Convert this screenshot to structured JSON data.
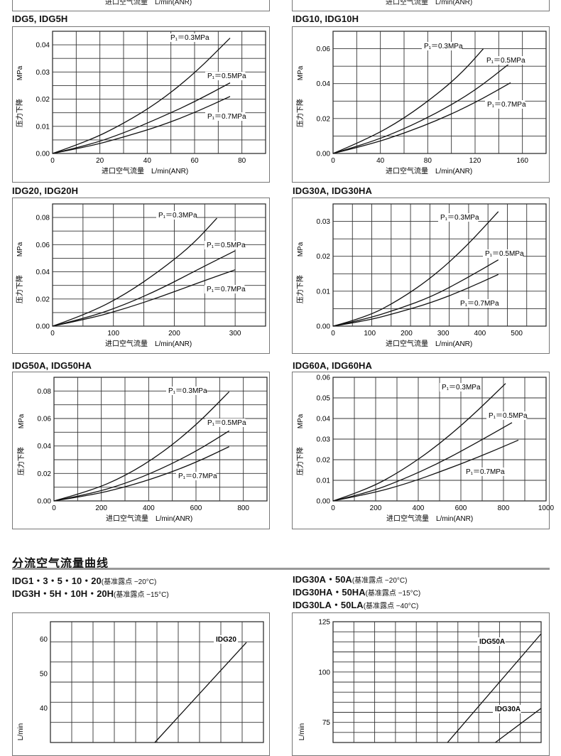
{
  "top_fragments": [
    "进口空气流量　L/min(ANR)",
    "进口空气流量　L/min(ANR)"
  ],
  "section_heading": "分流空气流量曲线",
  "subheads": {
    "left": [
      {
        "main": "IDG1・3・5・10・20",
        "note": "(基准露点 −20°C)"
      },
      {
        "main": "IDG3H・5H・10H・20H",
        "note": "(基准露点 −15°C)"
      }
    ],
    "right": [
      {
        "main": "IDG30A・50A",
        "note": "(基准露点 −20°C)"
      },
      {
        "main": "IDG30HA・50HA",
        "note": "(基准露点 −15°C)"
      },
      {
        "main": "IDG30LA・50LA",
        "note": "(基准露点 −40°C)"
      }
    ]
  },
  "chart_data": [
    {
      "type": "line",
      "title": "IDG5, IDG5H",
      "xlabel": "进口空气流量　L/min(ANR)",
      "ylabel_cn": "压力下降",
      "ylabel_unit": "MPa",
      "xlim": [
        0,
        90
      ],
      "ylim": [
        0,
        0.045
      ],
      "xticks": [
        0,
        20,
        40,
        60,
        80
      ],
      "yticks": [
        0.0,
        0.01,
        0.02,
        0.03,
        0.04
      ],
      "yticklabels": [
        "0.00",
        "0.01",
        "0.02",
        "0.03",
        "0.04"
      ],
      "series": [
        {
          "name": "P₁＝0.3MPa",
          "x": [
            0,
            15,
            30,
            45,
            60,
            75
          ],
          "y": [
            0,
            0.0045,
            0.011,
            0.019,
            0.0295,
            0.0425
          ]
        },
        {
          "name": "P₁＝0.5MPa",
          "x": [
            0,
            15,
            30,
            45,
            60,
            75
          ],
          "y": [
            0,
            0.003,
            0.0075,
            0.013,
            0.019,
            0.026
          ]
        },
        {
          "name": "P₁＝0.7MPa",
          "x": [
            0,
            15,
            30,
            45,
            60,
            75
          ],
          "y": [
            0,
            0.0025,
            0.006,
            0.01,
            0.015,
            0.021
          ]
        }
      ]
    },
    {
      "type": "line",
      "title": "IDG10, IDG10H",
      "xlabel": "进口空气流量　L/min(ANR)",
      "ylabel_cn": "压力下降",
      "ylabel_unit": "MPa",
      "xlim": [
        0,
        180
      ],
      "ylim": [
        0,
        0.07
      ],
      "xticks": [
        0,
        40,
        80,
        120,
        160
      ],
      "yticks": [
        0.0,
        0.02,
        0.04,
        0.06
      ],
      "yticklabels": [
        "0.00",
        "0.02",
        "0.04",
        "0.06"
      ],
      "series": [
        {
          "name": "P₁＝0.3MPa",
          "x": [
            0,
            30,
            60,
            90,
            110,
            127
          ],
          "y": [
            0,
            0.0085,
            0.02,
            0.035,
            0.047,
            0.06
          ]
        },
        {
          "name": "P₁＝0.5MPa",
          "x": [
            0,
            30,
            60,
            90,
            120,
            150
          ],
          "y": [
            0,
            0.006,
            0.014,
            0.024,
            0.036,
            0.052
          ]
        },
        {
          "name": "P₁＝0.7MPa",
          "x": [
            0,
            30,
            60,
            90,
            120,
            150
          ],
          "y": [
            0,
            0.005,
            0.0115,
            0.0195,
            0.029,
            0.0405
          ]
        }
      ]
    },
    {
      "type": "line",
      "title": "IDG20, IDG20H",
      "xlabel": "进口空气流量　L/min(ANR)",
      "ylabel_cn": "压力下降",
      "ylabel_unit": "MPa",
      "xlim": [
        0,
        350
      ],
      "ylim": [
        0,
        0.09
      ],
      "xticks": [
        0,
        100,
        200,
        300
      ],
      "yticks": [
        0.0,
        0.02,
        0.04,
        0.06,
        0.08
      ],
      "yticklabels": [
        "0.00",
        "0.02",
        "0.04",
        "0.06",
        "0.08"
      ],
      "series": [
        {
          "name": "P₁＝0.3MPa",
          "x": [
            0,
            60,
            120,
            180,
            230,
            270
          ],
          "y": [
            0,
            0.0095,
            0.0235,
            0.042,
            0.06,
            0.0795
          ]
        },
        {
          "name": "P₁＝0.5MPa",
          "x": [
            0,
            60,
            120,
            180,
            240,
            300
          ],
          "y": [
            0,
            0.0065,
            0.016,
            0.028,
            0.042,
            0.0555
          ]
        },
        {
          "name": "P₁＝0.7MPa",
          "x": [
            0,
            60,
            120,
            180,
            240,
            300
          ],
          "y": [
            0,
            0.0055,
            0.013,
            0.022,
            0.032,
            0.0415
          ]
        }
      ]
    },
    {
      "type": "line",
      "title": "IDG30A, IDG30HA",
      "xlabel": "进口空气流量　L/min(ANR)",
      "ylabel_cn": "压力下降",
      "ylabel_unit": "MPa",
      "xlim": [
        0,
        580
      ],
      "ylim": [
        0,
        0.035
      ],
      "xticks": [
        0,
        100,
        200,
        300,
        400,
        500
      ],
      "yticks": [
        0.0,
        0.01,
        0.02,
        0.03
      ],
      "yticklabels": [
        "0.00",
        "0.01",
        "0.02",
        "0.03"
      ],
      "series": [
        {
          "name": "P₁＝0.3MPa",
          "x": [
            0,
            90,
            180,
            270,
            360,
            450
          ],
          "y": [
            0,
            0.0025,
            0.0075,
            0.014,
            0.0225,
            0.0328
          ]
        },
        {
          "name": "P₁＝0.5MPa",
          "x": [
            0,
            90,
            180,
            270,
            360,
            450
          ],
          "y": [
            0,
            0.002,
            0.005,
            0.0085,
            0.0135,
            0.019
          ]
        },
        {
          "name": "P₁＝0.7MPa",
          "x": [
            0,
            90,
            180,
            270,
            360,
            450
          ],
          "y": [
            0,
            0.0015,
            0.004,
            0.0068,
            0.0105,
            0.0148
          ]
        }
      ]
    },
    {
      "type": "line",
      "title": "IDG50A, IDG50HA",
      "xlabel": "进口空气流量　L/min(ANR)",
      "ylabel_cn": "压力下降",
      "ylabel_unit": "MPa",
      "xlim": [
        0,
        900
      ],
      "ylim": [
        0,
        0.09
      ],
      "xticks": [
        0,
        200,
        400,
        600,
        800
      ],
      "yticks": [
        0.0,
        0.02,
        0.04,
        0.06,
        0.08
      ],
      "yticklabels": [
        "0.00",
        "0.02",
        "0.04",
        "0.06",
        "0.08"
      ],
      "series": [
        {
          "name": "P₁＝0.3MPa",
          "x": [
            0,
            150,
            300,
            450,
            600,
            740
          ],
          "y": [
            0,
            0.007,
            0.018,
            0.034,
            0.055,
            0.0795
          ]
        },
        {
          "name": "P₁＝0.5MPa",
          "x": [
            0,
            150,
            300,
            450,
            600,
            740
          ],
          "y": [
            0,
            0.005,
            0.0125,
            0.023,
            0.036,
            0.051
          ]
        },
        {
          "name": "P₁＝0.7MPa",
          "x": [
            0,
            150,
            300,
            450,
            600,
            740
          ],
          "y": [
            0,
            0.004,
            0.01,
            0.018,
            0.028,
            0.0395
          ]
        }
      ]
    },
    {
      "type": "line",
      "title": "IDG60A, IDG60HA",
      "xlabel": "进口空气流量　L/min(ANR)",
      "ylabel_cn": "压力下降",
      "ylabel_unit": "MPa",
      "xlim": [
        0,
        1000
      ],
      "ylim": [
        0,
        0.06
      ],
      "xticks": [
        0,
        200,
        400,
        600,
        800,
        1000
      ],
      "xticklabels": [
        "0",
        "200",
        "400",
        "600",
        "800",
        "1000"
      ],
      "yticks": [
        0.0,
        0.01,
        0.02,
        0.03,
        0.04,
        0.05,
        0.06
      ],
      "yticklabels": [
        "0.00",
        "0.01",
        "0.02",
        "0.03",
        "0.04",
        "0.05",
        "0.06"
      ],
      "series": [
        {
          "name": "P₁＝0.3MPa",
          "x": [
            0,
            160,
            320,
            480,
            640,
            810
          ],
          "y": [
            0,
            0.0055,
            0.0145,
            0.026,
            0.04,
            0.057
          ]
        },
        {
          "name": "P₁＝0.5MPa",
          "x": [
            0,
            165,
            330,
            500,
            670,
            840
          ],
          "y": [
            0,
            0.004,
            0.0105,
            0.0185,
            0.028,
            0.038
          ]
        },
        {
          "name": "P₁＝0.7MPa",
          "x": [
            0,
            175,
            350,
            525,
            700,
            870
          ],
          "y": [
            0,
            0.0035,
            0.0085,
            0.015,
            0.022,
            0.0295
          ]
        }
      ]
    },
    {
      "type": "line",
      "title": "",
      "ylabel_unit": "L/min",
      "xlim": [
        0,
        1
      ],
      "ylim": [
        30,
        65
      ],
      "yticks": [
        40,
        50,
        60
      ],
      "yticklabels": [
        "40",
        "50",
        "60"
      ],
      "series": [
        {
          "name": "IDG20",
          "x": [
            0.49,
            0.92
          ],
          "y": [
            30,
            59
          ]
        }
      ]
    },
    {
      "type": "line",
      "title": "",
      "ylabel_unit": "L/min",
      "xlim": [
        0,
        1
      ],
      "ylim": [
        65,
        125
      ],
      "yticks": [
        75,
        100,
        125
      ],
      "yticklabels": [
        "75",
        "100",
        "125"
      ],
      "series": [
        {
          "name": "IDG50A",
          "x": [
            0.55,
            1.0
          ],
          "y": [
            65,
            119
          ]
        },
        {
          "name": "IDG30A",
          "x": [
            0.78,
            1.0
          ],
          "y": [
            65,
            82
          ]
        }
      ]
    }
  ]
}
